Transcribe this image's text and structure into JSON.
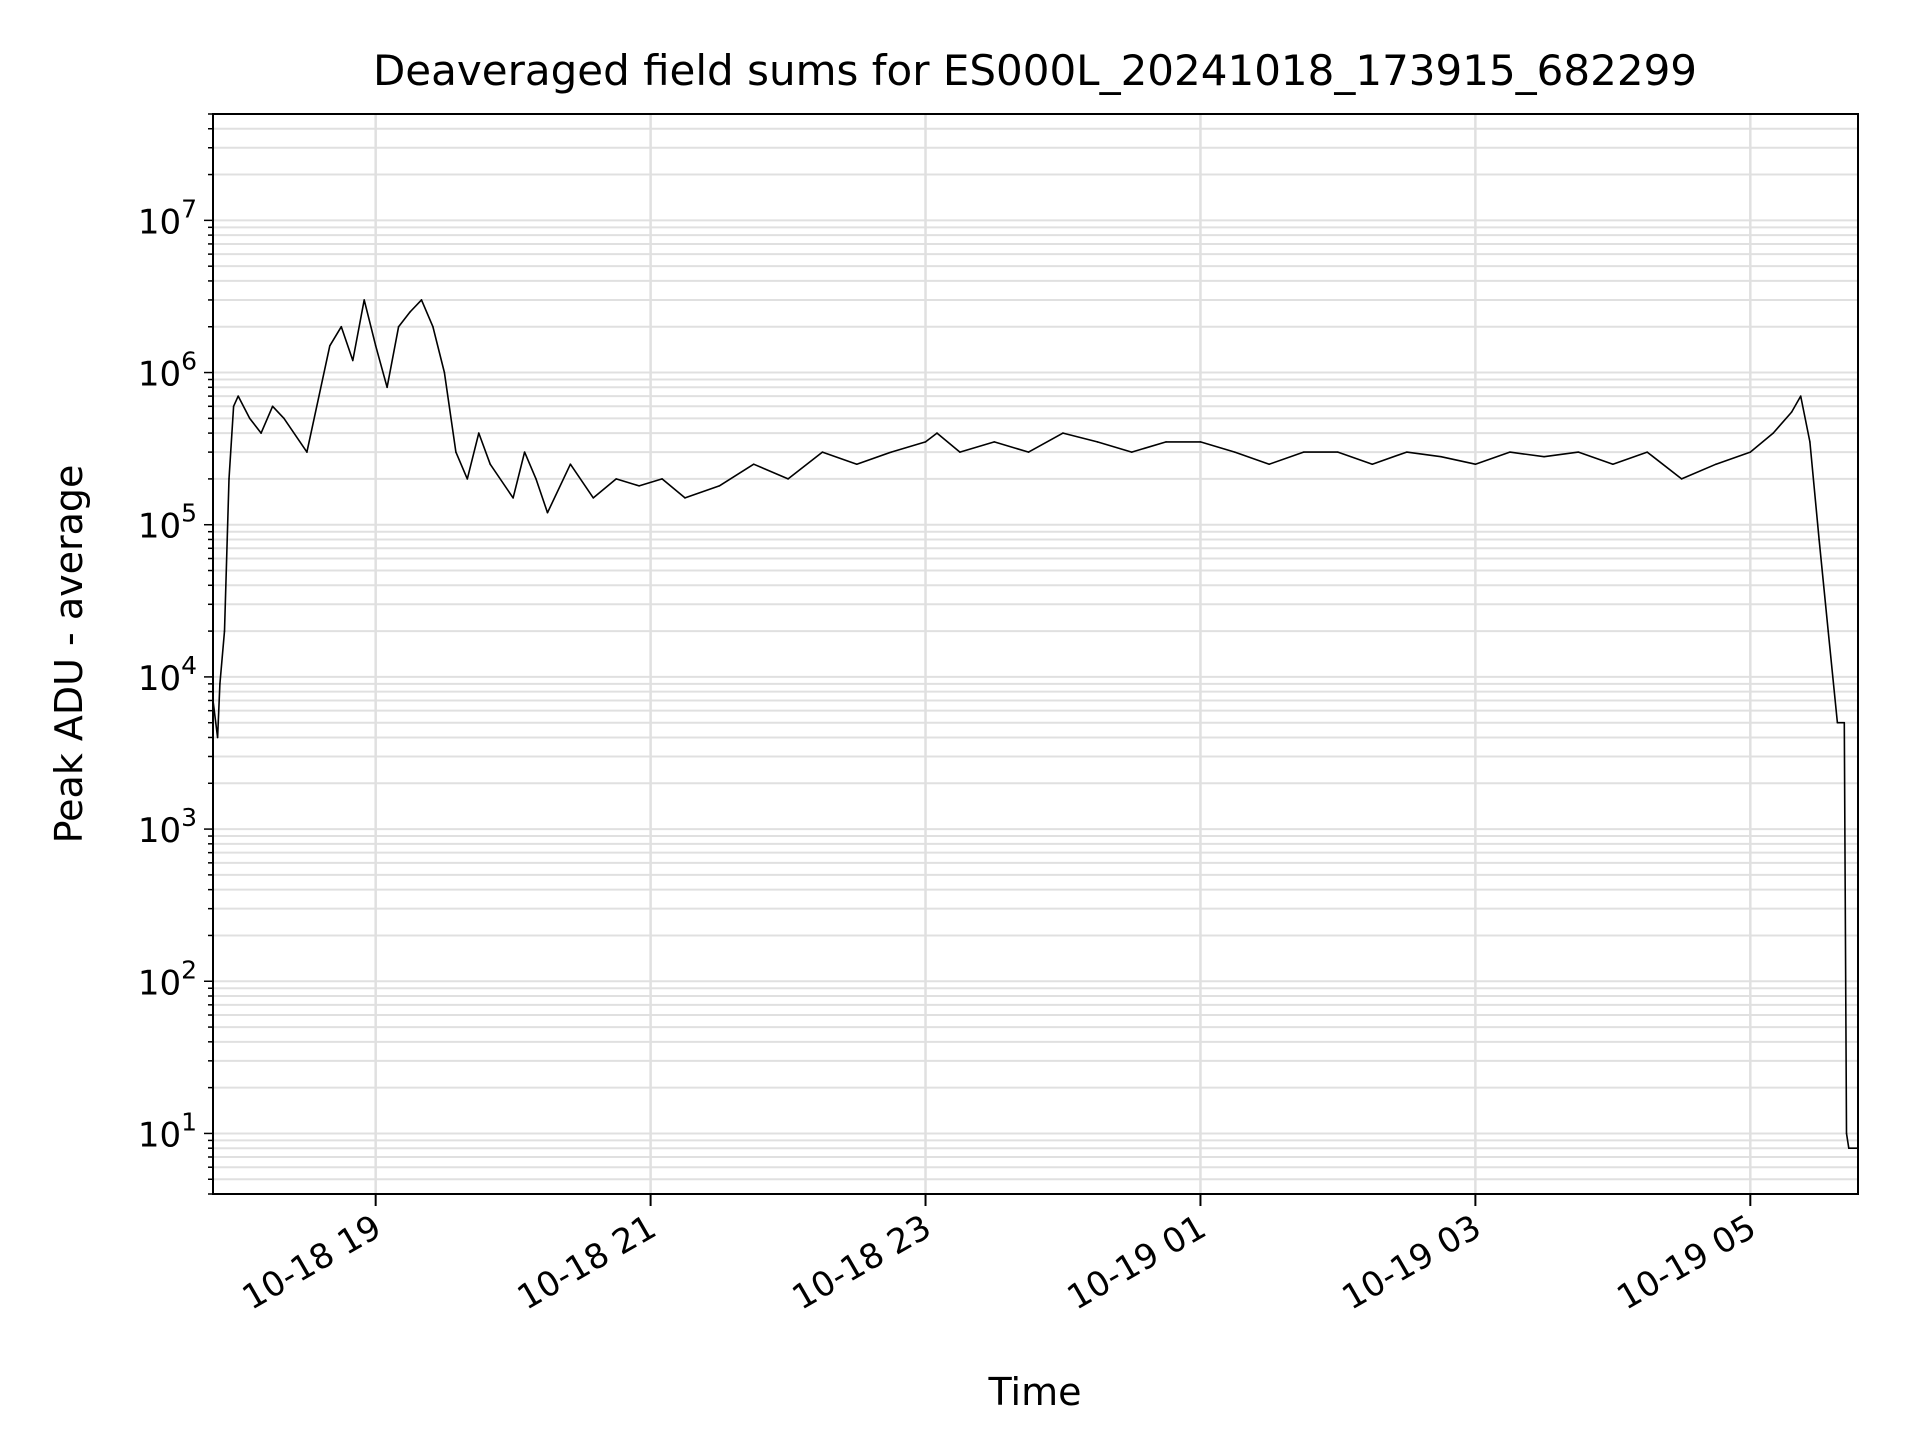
{
  "chart_data": {
    "type": "line",
    "title": "Deaveraged field sums for ES000L_20241018_173915_682299",
    "xlabel": "Time",
    "ylabel": "Peak ADU - average",
    "yscale": "log",
    "ylim": [
      4,
      50000000
    ],
    "xlim": [
      "2024-10-18 17:49",
      "2024-10-19 05:47"
    ],
    "grid": true,
    "legend": "none",
    "line_color": "#000000",
    "grid_color": "#e0e0e0",
    "x_ticks": [
      {
        "value": "2024-10-18 19:00",
        "label": "10-18 19"
      },
      {
        "value": "2024-10-18 21:00",
        "label": "10-18 21"
      },
      {
        "value": "2024-10-18 23:00",
        "label": "10-18 23"
      },
      {
        "value": "2024-10-19 01:00",
        "label": "10-19 01"
      },
      {
        "value": "2024-10-19 03:00",
        "label": "10-19 03"
      },
      {
        "value": "2024-10-19 05:00",
        "label": "10-19 05"
      }
    ],
    "y_ticks": [
      {
        "value": 10,
        "base": "10",
        "exp": "1"
      },
      {
        "value": 100,
        "base": "10",
        "exp": "2"
      },
      {
        "value": 1000,
        "base": "10",
        "exp": "3"
      },
      {
        "value": 10000,
        "base": "10",
        "exp": "4"
      },
      {
        "value": 100000,
        "base": "10",
        "exp": "5"
      },
      {
        "value": 1000000,
        "base": "10",
        "exp": "6"
      },
      {
        "value": 10000000,
        "base": "10",
        "exp": "7"
      }
    ],
    "series": [
      {
        "x": [
          "2024-10-18 17:49",
          "2024-10-18 17:51",
          "2024-10-18 17:52",
          "2024-10-18 17:54",
          "2024-10-18 17:56",
          "2024-10-18 17:58",
          "2024-10-18 18:00",
          "2024-10-18 18:05",
          "2024-10-18 18:10",
          "2024-10-18 18:15",
          "2024-10-18 18:20",
          "2024-10-18 18:30",
          "2024-10-18 18:40",
          "2024-10-18 18:45",
          "2024-10-18 18:50",
          "2024-10-18 18:55",
          "2024-10-18 19:00",
          "2024-10-18 19:05",
          "2024-10-18 19:10",
          "2024-10-18 19:15",
          "2024-10-18 19:20",
          "2024-10-18 19:25",
          "2024-10-18 19:30",
          "2024-10-18 19:35",
          "2024-10-18 19:40",
          "2024-10-18 19:45",
          "2024-10-18 19:50",
          "2024-10-18 20:00",
          "2024-10-18 20:05",
          "2024-10-18 20:10",
          "2024-10-18 20:15",
          "2024-10-18 20:25",
          "2024-10-18 20:35",
          "2024-10-18 20:45",
          "2024-10-18 20:55",
          "2024-10-18 21:05",
          "2024-10-18 21:15",
          "2024-10-18 21:30",
          "2024-10-18 21:45",
          "2024-10-18 22:00",
          "2024-10-18 22:15",
          "2024-10-18 22:30",
          "2024-10-18 22:45",
          "2024-10-18 23:00",
          "2024-10-18 23:05",
          "2024-10-18 23:15",
          "2024-10-18 23:30",
          "2024-10-18 23:45",
          "2024-10-19 00:00",
          "2024-10-19 00:15",
          "2024-10-19 00:30",
          "2024-10-19 00:45",
          "2024-10-19 01:00",
          "2024-10-19 01:15",
          "2024-10-19 01:30",
          "2024-10-19 01:45",
          "2024-10-19 02:00",
          "2024-10-19 02:15",
          "2024-10-19 02:30",
          "2024-10-19 02:45",
          "2024-10-19 03:00",
          "2024-10-19 03:15",
          "2024-10-19 03:30",
          "2024-10-19 03:45",
          "2024-10-19 04:00",
          "2024-10-19 04:15",
          "2024-10-19 04:30",
          "2024-10-19 04:45",
          "2024-10-19 05:00",
          "2024-10-19 05:10",
          "2024-10-19 05:18",
          "2024-10-19 05:22",
          "2024-10-19 05:26",
          "2024-10-19 05:30",
          "2024-10-19 05:34",
          "2024-10-19 05:38",
          "2024-10-19 05:41",
          "2024-10-19 05:42",
          "2024-10-19 05:43",
          "2024-10-19 05:47"
        ],
        "values": [
          7000,
          4000,
          9000,
          20000,
          200000,
          600000,
          700000,
          500000,
          400000,
          600000,
          500000,
          300000,
          1500000,
          2000000,
          1200000,
          3000000,
          1500000,
          800000,
          2000000,
          2500000,
          3000000,
          2000000,
          1000000,
          300000,
          200000,
          400000,
          250000,
          150000,
          300000,
          200000,
          120000,
          250000,
          150000,
          200000,
          180000,
          200000,
          150000,
          180000,
          250000,
          200000,
          300000,
          250000,
          300000,
          350000,
          400000,
          300000,
          350000,
          300000,
          400000,
          350000,
          300000,
          350000,
          350000,
          300000,
          250000,
          300000,
          300000,
          250000,
          300000,
          280000,
          250000,
          300000,
          280000,
          300000,
          250000,
          300000,
          200000,
          250000,
          300000,
          400000,
          550000,
          700000,
          350000,
          80000,
          20000,
          5000,
          5000,
          10,
          8,
          8
        ]
      }
    ]
  }
}
